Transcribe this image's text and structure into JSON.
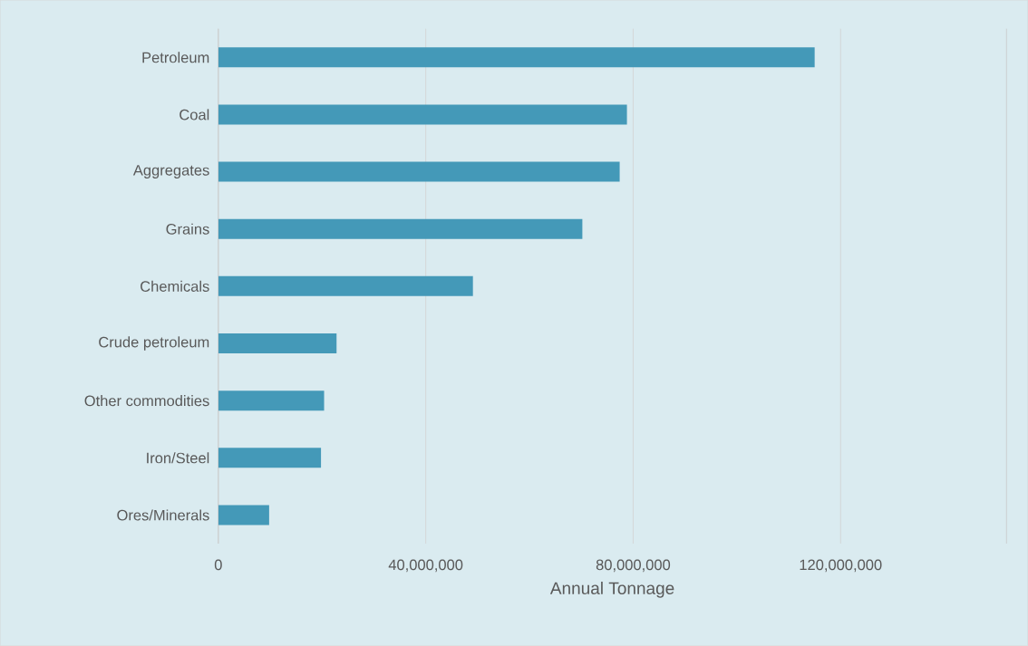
{
  "chart_data": {
    "type": "bar",
    "orientation": "horizontal",
    "xlabel": "Annual Tonnage",
    "categories": [
      "Petroleum",
      "Coal",
      "Aggregates",
      "Grains",
      "Chemicals",
      "Crude petroleum",
      "Other commodities",
      "Iron/Steel",
      "Ores/Minerals"
    ],
    "values": [
      115000000,
      78800000,
      77400000,
      70200000,
      49100000,
      22800000,
      20400000,
      19800000,
      9800000
    ],
    "color": "#4499b8",
    "xlim": [
      0,
      152000000
    ],
    "xticks": [
      0,
      {
        "value": 40000000,
        "label": "40,000,000"
      },
      {
        "value": 80000000,
        "label": "80,000,000"
      },
      {
        "value": 120000000,
        "label": "120,000,000"
      }
    ],
    "grid": "x"
  }
}
